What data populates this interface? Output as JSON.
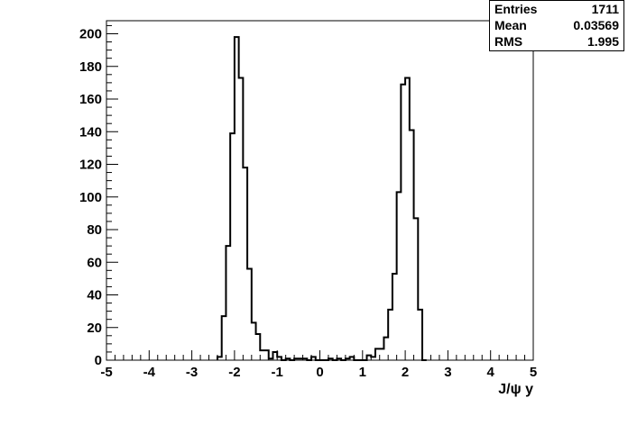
{
  "chart_data": {
    "type": "histogram",
    "title": "",
    "xlabel": "J/ψ y",
    "ylabel": "",
    "xlim": [
      -5,
      5
    ],
    "ylim": [
      0,
      208
    ],
    "bin_width": 0.1,
    "x_ticks": [
      -5,
      -4,
      -3,
      -2,
      -1,
      0,
      1,
      2,
      3,
      4,
      5
    ],
    "y_ticks": [
      0,
      20,
      40,
      60,
      80,
      100,
      120,
      140,
      160,
      180,
      200
    ],
    "grid": false,
    "bins": [
      {
        "x0": -2.4,
        "v": 2
      },
      {
        "x0": -2.3,
        "v": 27
      },
      {
        "x0": -2.2,
        "v": 70
      },
      {
        "x0": -2.1,
        "v": 139
      },
      {
        "x0": -2.0,
        "v": 198
      },
      {
        "x0": -1.9,
        "v": 173
      },
      {
        "x0": -1.8,
        "v": 118
      },
      {
        "x0": -1.7,
        "v": 56
      },
      {
        "x0": -1.6,
        "v": 23
      },
      {
        "x0": -1.5,
        "v": 16
      },
      {
        "x0": -1.4,
        "v": 6
      },
      {
        "x0": -1.3,
        "v": 6
      },
      {
        "x0": -1.2,
        "v": 1
      },
      {
        "x0": -1.1,
        "v": 5
      },
      {
        "x0": -1.0,
        "v": 2
      },
      {
        "x0": -0.9,
        "v": 0
      },
      {
        "x0": -0.8,
        "v": 1
      },
      {
        "x0": -0.7,
        "v": 0
      },
      {
        "x0": -0.6,
        "v": 1
      },
      {
        "x0": -0.5,
        "v": 1
      },
      {
        "x0": -0.4,
        "v": 1
      },
      {
        "x0": -0.3,
        "v": 0
      },
      {
        "x0": -0.2,
        "v": 2
      },
      {
        "x0": -0.1,
        "v": 0
      },
      {
        "x0": 0.0,
        "v": 0
      },
      {
        "x0": 0.1,
        "v": 0
      },
      {
        "x0": 0.2,
        "v": 1
      },
      {
        "x0": 0.3,
        "v": 0
      },
      {
        "x0": 0.4,
        "v": 1
      },
      {
        "x0": 0.5,
        "v": 0
      },
      {
        "x0": 0.6,
        "v": 1
      },
      {
        "x0": 0.7,
        "v": 2
      },
      {
        "x0": 0.8,
        "v": 0
      },
      {
        "x0": 0.9,
        "v": 0
      },
      {
        "x0": 1.0,
        "v": 0
      },
      {
        "x0": 1.1,
        "v": 3
      },
      {
        "x0": 1.2,
        "v": 2
      },
      {
        "x0": 1.3,
        "v": 7
      },
      {
        "x0": 1.4,
        "v": 7
      },
      {
        "x0": 1.5,
        "v": 14
      },
      {
        "x0": 1.6,
        "v": 31
      },
      {
        "x0": 1.7,
        "v": 53
      },
      {
        "x0": 1.8,
        "v": 103
      },
      {
        "x0": 1.9,
        "v": 169
      },
      {
        "x0": 2.0,
        "v": 173
      },
      {
        "x0": 2.1,
        "v": 141
      },
      {
        "x0": 2.2,
        "v": 87
      },
      {
        "x0": 2.3,
        "v": 31
      },
      {
        "x0": 2.4,
        "v": 0
      }
    ]
  },
  "stats": {
    "entries_label": "Entries",
    "entries_value": "1711",
    "mean_label": "Mean",
    "mean_value": "0.03569",
    "rms_label": "RMS",
    "rms_value": "1.995"
  }
}
